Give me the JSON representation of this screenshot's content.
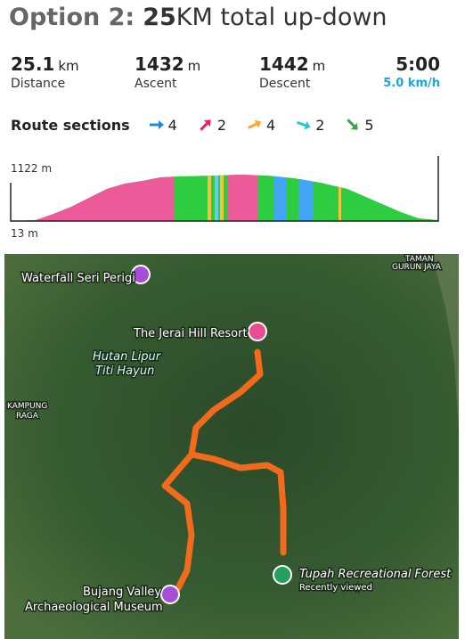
{
  "header": {
    "title_prefix": "Option 2:",
    "title_number": "25",
    "title_rest": "KM total up-down"
  },
  "stats": [
    {
      "value": 25.1,
      "unit": "km",
      "label": "Distance"
    },
    {
      "value": 1432,
      "unit": "m",
      "label": "Ascent"
    },
    {
      "value": 1442,
      "unit": "m",
      "label": "Descent"
    },
    {
      "value": "5:00",
      "label": "5.0 km/h"
    }
  ],
  "route_sections": {
    "title": "Route sections",
    "items": [
      {
        "count": 4,
        "color": "#1e88e5",
        "angle": 0
      },
      {
        "count": 2,
        "color": "#e91e63",
        "angle": -45
      },
      {
        "count": 4,
        "color": "#f9a825",
        "angle": -25
      },
      {
        "count": 2,
        "color": "#26c6da",
        "angle": 20
      },
      {
        "count": 5,
        "color": "#43a047",
        "angle": 45
      }
    ]
  },
  "profile": {
    "max_label": "1122 m",
    "min_label": "13 m"
  },
  "map": {
    "labels": [
      "Waterfall Seri Perigi",
      "The Jerai Hill Resort",
      "Hutan Lipur",
      "Titi Hayun",
      "KAMPUNG",
      "RAGA",
      "TAMAN",
      "GURUN JAYA",
      "Bujang Valley",
      "Archaeological Museum",
      "Tupah Recreational Forest",
      "Recently viewed"
    ]
  }
}
